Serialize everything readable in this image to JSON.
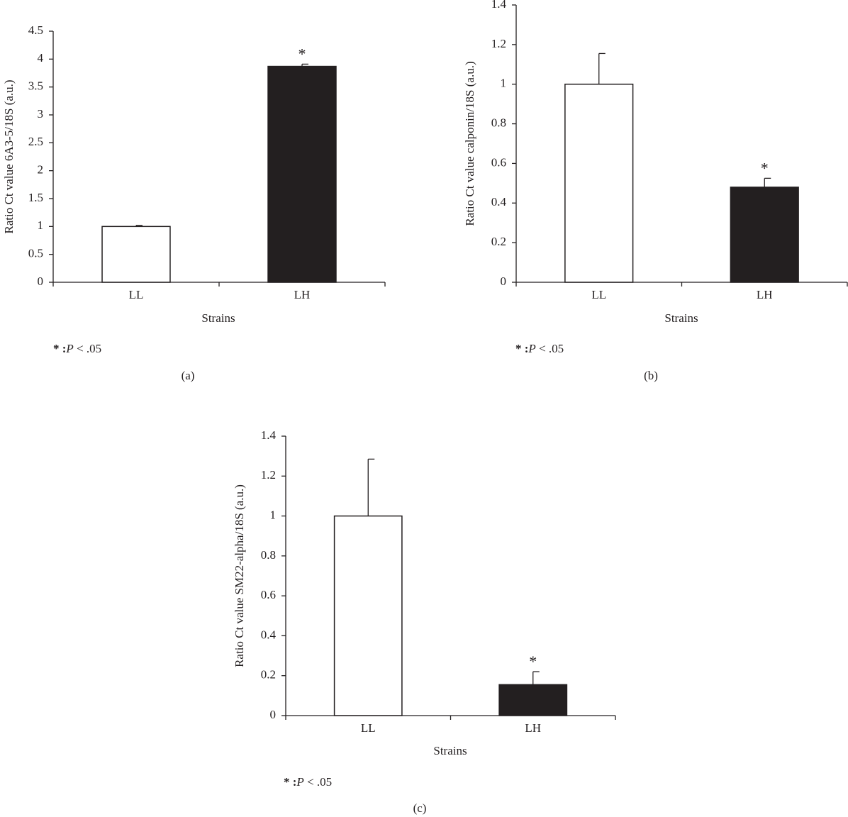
{
  "chart_data": [
    {
      "type": "bar",
      "panel": "(a)",
      "y_label": "Ratio Ct value 6A3-5/18S (a.u.)",
      "x_label": "Strains",
      "categories": [
        "LL",
        "LH"
      ],
      "values": [
        1,
        3.87
      ],
      "errors": [
        0.02,
        0.04
      ],
      "colors": [
        "#ffffff",
        "#231f20"
      ],
      "significance": [
        null,
        "*"
      ],
      "ylim": [
        0,
        4.5
      ],
      "yticks": [
        0,
        0.5,
        1,
        1.5,
        2,
        2.5,
        3,
        3.5,
        4,
        4.5
      ],
      "note": [
        "* :",
        "P",
        " < .05"
      ]
    },
    {
      "type": "bar",
      "panel": "(b)",
      "y_label": "Ratio Ct value calponin/18S (a.u.)",
      "x_label": "Strains",
      "categories": [
        "LL",
        "LH"
      ],
      "values": [
        1,
        0.48
      ],
      "errors": [
        0.155,
        0.045
      ],
      "colors": [
        "#ffffff",
        "#231f20"
      ],
      "significance": [
        null,
        "*"
      ],
      "ylim": [
        0,
        1.4
      ],
      "yticks": [
        0,
        0.2,
        0.4,
        0.6,
        0.8,
        1,
        1.2,
        1.4
      ],
      "note": [
        "* :",
        "P",
        " < .05"
      ]
    },
    {
      "type": "bar",
      "panel": "(c)",
      "y_label": "Ratio Ct value SM22-alpha/18S (a.u.)",
      "x_label": "Strains",
      "categories": [
        "LL",
        "LH"
      ],
      "values": [
        1,
        0.155
      ],
      "errors": [
        0.285,
        0.065
      ],
      "colors": [
        "#ffffff",
        "#231f20"
      ],
      "significance": [
        null,
        "*"
      ],
      "ylim": [
        0,
        1.4
      ],
      "yticks": [
        0,
        0.2,
        0.4,
        0.6,
        0.8,
        1,
        1.2,
        1.4
      ],
      "note": [
        "* :",
        "P",
        " < .05"
      ]
    }
  ]
}
